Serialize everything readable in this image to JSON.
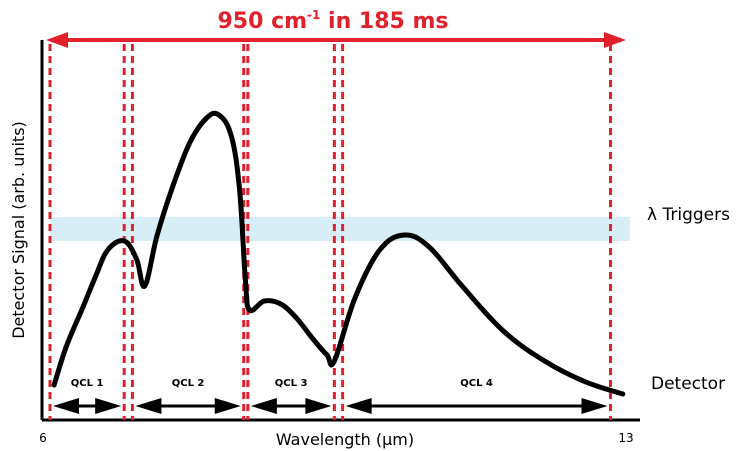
{
  "chart_data": {
    "type": "line",
    "title": {
      "prefix": "950 cm",
      "superscript": "-1",
      "suffix": " in 185 ms"
    },
    "xlabel": "Wavelength (μm)",
    "ylabel": "Detector Signal (arb. units)",
    "x_ticks": [
      {
        "value": 6,
        "label": "6"
      },
      {
        "value": 13,
        "label": "13"
      }
    ],
    "right_labels": {
      "triggers": "λ Triggers",
      "detector": "Detector"
    },
    "segments": [
      {
        "name": "QCL 1",
        "range": [
          6.0,
          6.9
        ]
      },
      {
        "name": "QCL 2",
        "range": [
          7.0,
          8.35
        ]
      },
      {
        "name": "QCL 3",
        "range": [
          8.4,
          9.45
        ]
      },
      {
        "name": "QCL 4",
        "range": [
          9.55,
          12.8
        ]
      }
    ],
    "boundaries": [
      6.0,
      6.9,
      7.0,
      8.35,
      8.4,
      9.45,
      9.55,
      12.8
    ],
    "curve": [
      {
        "x": 6.05,
        "y": 0.05
      },
      {
        "x": 6.2,
        "y": 0.18
      },
      {
        "x": 6.4,
        "y": 0.31
      },
      {
        "x": 6.55,
        "y": 0.41
      },
      {
        "x": 6.7,
        "y": 0.5
      },
      {
        "x": 6.9,
        "y": 0.53
      },
      {
        "x": 7.05,
        "y": 0.47
      },
      {
        "x": 7.15,
        "y": 0.38
      },
      {
        "x": 7.3,
        "y": 0.55
      },
      {
        "x": 7.5,
        "y": 0.72
      },
      {
        "x": 7.7,
        "y": 0.86
      },
      {
        "x": 7.9,
        "y": 0.94
      },
      {
        "x": 8.05,
        "y": 0.95
      },
      {
        "x": 8.2,
        "y": 0.88
      },
      {
        "x": 8.3,
        "y": 0.7
      },
      {
        "x": 8.37,
        "y": 0.4
      },
      {
        "x": 8.42,
        "y": 0.3
      },
      {
        "x": 8.6,
        "y": 0.33
      },
      {
        "x": 8.8,
        "y": 0.32
      },
      {
        "x": 9.0,
        "y": 0.27
      },
      {
        "x": 9.2,
        "y": 0.2
      },
      {
        "x": 9.36,
        "y": 0.15
      },
      {
        "x": 9.45,
        "y": 0.13
      },
      {
        "x": 9.7,
        "y": 0.34
      },
      {
        "x": 10.0,
        "y": 0.5
      },
      {
        "x": 10.3,
        "y": 0.55
      },
      {
        "x": 10.6,
        "y": 0.51
      },
      {
        "x": 11.0,
        "y": 0.38
      },
      {
        "x": 11.5,
        "y": 0.23
      },
      {
        "x": 12.0,
        "y": 0.13
      },
      {
        "x": 12.5,
        "y": 0.06
      },
      {
        "x": 12.95,
        "y": 0.02
      }
    ],
    "trigger_band": [
      0.53,
      0.61
    ],
    "xlim": [
      6,
      13
    ],
    "ylim": [
      0,
      1
    ],
    "grid": false,
    "colors": {
      "accent": "#e0202a",
      "band": "#d8eef6",
      "curve": "#000000"
    }
  }
}
